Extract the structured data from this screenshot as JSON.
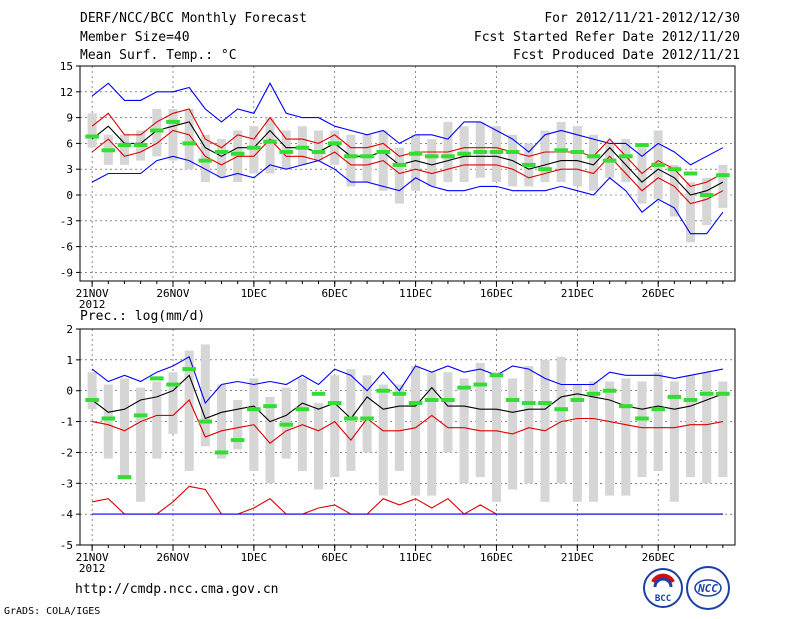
{
  "header": {
    "title": "DERF/NCC/BCC Monthly Forecast",
    "member_size": "Member Size=40",
    "forecast_period": "For 2012/11/21-2012/12/30",
    "start_date": "Fcst Started Refer Date 2012/11/20",
    "produced_date": "Fcst Produced Date 2012/11/21"
  },
  "footer": {
    "url": "http://cmdp.ncc.cma.gov.cn",
    "grads_credit": "GrADS: COLA/IGES",
    "logo_bcc": "BCC",
    "logo_ncc": "NCC"
  },
  "colors": {
    "box": "#d6d6d6",
    "ensemble_mean": "#000000",
    "outer_bounds": "#0000ff",
    "inner_bounds": "#e00000",
    "observed": "#33dd33",
    "frame": "#000000"
  },
  "chart_data": [
    {
      "type": "line",
      "name": "temperature",
      "ylabel": "Mean Surf. Temp.: °C",
      "ylim": [
        -10,
        15
      ],
      "yticks": [
        15,
        12,
        9,
        6,
        3,
        0,
        -3,
        -6,
        -9
      ],
      "x_tick_labels": [
        "21NOV",
        "26NOV",
        "1DEC",
        "6DEC",
        "11DEC",
        "16DEC",
        "21DEC",
        "26DEC"
      ],
      "x_tick_days": [
        1,
        6,
        11,
        16,
        21,
        26,
        31,
        36
      ],
      "x_year_label": "2012",
      "days": [
        1,
        2,
        3,
        4,
        5,
        6,
        7,
        8,
        9,
        10,
        11,
        12,
        13,
        14,
        15,
        16,
        17,
        18,
        19,
        20,
        21,
        22,
        23,
        24,
        25,
        26,
        27,
        28,
        29,
        30,
        31,
        32,
        33,
        34,
        35,
        36,
        37,
        38,
        39,
        40
      ],
      "box_top": [
        9.5,
        7.0,
        7.0,
        7.5,
        10.0,
        10.0,
        10.0,
        7.0,
        6.5,
        7.5,
        8.0,
        9.0,
        7.5,
        8.0,
        7.5,
        7.5,
        7.0,
        7.0,
        7.5,
        5.5,
        7.0,
        6.5,
        8.5,
        8.0,
        8.5,
        8.0,
        7.0,
        6.0,
        7.5,
        8.5,
        8.0,
        7.0,
        6.0,
        6.5,
        5.5,
        7.5,
        3.5,
        1.5,
        2.0,
        3.5
      ],
      "box_bottom": [
        5.5,
        3.5,
        3.5,
        4.0,
        4.5,
        4.0,
        3.0,
        1.5,
        2.0,
        1.5,
        2.5,
        2.5,
        3.0,
        3.5,
        4.0,
        3.5,
        1.0,
        1.5,
        0.5,
        -1.0,
        0.5,
        1.0,
        1.5,
        1.5,
        2.0,
        1.5,
        1.0,
        1.0,
        1.5,
        1.5,
        1.0,
        0.5,
        2.0,
        1.5,
        -1.0,
        -0.5,
        -2.5,
        -5.5,
        -3.5,
        -1.5
      ],
      "series": [
        {
          "name": "outer-high",
          "color": "blue",
          "values": [
            11.5,
            13.0,
            11.0,
            11.0,
            12.0,
            12.0,
            12.5,
            10.0,
            8.5,
            10.0,
            9.5,
            13.0,
            9.5,
            9.0,
            9.0,
            8.0,
            7.5,
            7.0,
            7.5,
            6.0,
            7.0,
            7.0,
            6.5,
            8.5,
            8.5,
            7.5,
            6.5,
            5.0,
            7.0,
            7.5,
            7.0,
            6.5,
            6.0,
            6.0,
            4.5,
            6.0,
            5.0,
            3.5,
            4.5,
            5.5
          ]
        },
        {
          "name": "inner-high",
          "color": "red",
          "values": [
            8.0,
            9.5,
            7.0,
            7.0,
            8.5,
            9.5,
            10.0,
            6.5,
            5.5,
            7.0,
            6.5,
            9.0,
            6.5,
            6.5,
            6.0,
            7.0,
            5.5,
            5.5,
            6.0,
            4.5,
            5.0,
            5.0,
            5.0,
            5.5,
            5.5,
            5.5,
            5.0,
            4.5,
            5.0,
            5.0,
            5.0,
            4.5,
            6.5,
            4.5,
            2.5,
            4.0,
            3.0,
            1.0,
            1.5,
            2.5
          ]
        },
        {
          "name": "ensemble-mean",
          "color": "black",
          "values": [
            6.5,
            8.0,
            6.0,
            6.0,
            7.5,
            8.0,
            8.5,
            5.5,
            4.5,
            5.5,
            5.5,
            7.5,
            5.5,
            5.5,
            5.0,
            6.0,
            4.5,
            4.5,
            5.0,
            3.5,
            4.0,
            3.5,
            4.0,
            4.5,
            4.5,
            4.5,
            4.0,
            3.0,
            3.5,
            4.0,
            4.0,
            3.5,
            5.5,
            3.5,
            1.5,
            3.0,
            2.0,
            0.0,
            0.5,
            1.5
          ]
        },
        {
          "name": "inner-low",
          "color": "red",
          "values": [
            5.0,
            6.5,
            4.5,
            5.0,
            6.0,
            7.5,
            7.0,
            4.5,
            3.5,
            4.5,
            4.5,
            6.5,
            4.5,
            4.5,
            4.0,
            5.0,
            3.5,
            3.5,
            4.0,
            2.5,
            3.0,
            2.5,
            3.0,
            3.5,
            3.5,
            3.5,
            3.0,
            2.0,
            2.5,
            3.0,
            3.0,
            2.5,
            4.5,
            2.5,
            0.5,
            2.0,
            1.0,
            -1.0,
            -0.5,
            0.5
          ]
        },
        {
          "name": "outer-low",
          "color": "blue",
          "values": [
            1.5,
            2.5,
            2.5,
            2.5,
            4.0,
            4.5,
            4.0,
            3.0,
            2.0,
            2.5,
            2.0,
            3.5,
            3.0,
            3.5,
            4.0,
            3.0,
            1.5,
            1.5,
            1.0,
            0.5,
            2.0,
            1.0,
            0.5,
            0.5,
            1.0,
            1.0,
            0.5,
            0.5,
            0.5,
            1.0,
            0.5,
            0.0,
            2.0,
            0.5,
            -2.0,
            -0.5,
            -1.5,
            -4.5,
            -4.5,
            -2.0
          ]
        },
        {
          "name": "observed",
          "color": "green",
          "values": [
            6.8,
            5.2,
            5.8,
            5.8,
            7.5,
            8.5,
            6.0,
            4.0,
            5.0,
            4.8,
            5.5,
            6.2,
            5.0,
            5.5,
            5.0,
            6.0,
            4.5,
            4.5,
            5.0,
            3.5,
            4.8,
            4.5,
            4.5,
            4.8,
            5.0,
            5.0,
            5.0,
            3.5,
            3.0,
            5.2,
            5.0,
            4.5,
            4.0,
            4.5,
            5.8,
            3.5,
            3.0,
            2.5,
            0.0,
            2.3
          ]
        }
      ]
    },
    {
      "type": "line",
      "name": "precipitation",
      "ylabel": "Prec.: log(mm/d)",
      "ylim": [
        -5,
        2
      ],
      "yticks": [
        2,
        1,
        0,
        -1,
        -2,
        -3,
        -4,
        -5
      ],
      "x_tick_labels": [
        "21NOV",
        "26NOV",
        "1DEC",
        "6DEC",
        "11DEC",
        "16DEC",
        "21DEC",
        "26DEC"
      ],
      "x_tick_days": [
        1,
        6,
        11,
        16,
        21,
        26,
        31,
        36
      ],
      "x_year_label": "2012",
      "days": [
        1,
        2,
        3,
        4,
        5,
        6,
        7,
        8,
        9,
        10,
        11,
        12,
        13,
        14,
        15,
        16,
        17,
        18,
        19,
        20,
        21,
        22,
        23,
        24,
        25,
        26,
        27,
        28,
        29,
        30,
        31,
        32,
        33,
        34,
        35,
        36,
        37,
        38,
        39,
        40
      ],
      "box_top": [
        0.6,
        0.2,
        0.4,
        0.1,
        0.3,
        0.6,
        1.3,
        1.5,
        0.2,
        -0.3,
        0.4,
        -0.2,
        0.1,
        0.4,
        -0.4,
        0.5,
        0.7,
        0.5,
        0.2,
        0.2,
        0.8,
        0.6,
        0.6,
        0.4,
        0.9,
        0.6,
        0.4,
        0.8,
        1.0,
        1.1,
        0.2,
        0.3,
        0.3,
        0.4,
        0.3,
        0.6,
        0.3,
        0.5,
        0.6,
        0.3
      ],
      "box_bottom": [
        -0.6,
        -2.2,
        -2.8,
        -3.6,
        -2.2,
        -1.4,
        -2.6,
        -1.8,
        -2.2,
        -1.9,
        -2.6,
        -3.0,
        -2.2,
        -2.6,
        -3.2,
        -2.8,
        -2.6,
        -2.0,
        -3.4,
        -2.6,
        -3.4,
        -3.4,
        -2.0,
        -3.0,
        -2.8,
        -3.6,
        -3.2,
        -3.0,
        -3.6,
        -3.0,
        -3.6,
        -3.6,
        -3.4,
        -3.4,
        -2.8,
        -2.6,
        -3.6,
        -2.8,
        -3.0,
        -2.8
      ],
      "series": [
        {
          "name": "outer-high",
          "color": "blue",
          "values": [
            0.7,
            0.3,
            0.5,
            0.3,
            0.6,
            0.8,
            1.1,
            -0.4,
            0.2,
            0.3,
            0.2,
            0.3,
            0.2,
            0.5,
            0.2,
            0.7,
            0.5,
            0.0,
            0.6,
            0.0,
            0.8,
            0.6,
            0.8,
            0.6,
            0.7,
            0.5,
            0.8,
            0.7,
            0.4,
            0.2,
            0.2,
            0.2,
            0.6,
            0.5,
            0.5,
            0.5,
            0.4,
            0.5,
            0.6,
            0.7
          ]
        },
        {
          "name": "ensemble-mean",
          "color": "black",
          "values": [
            -0.3,
            -0.7,
            -0.6,
            -0.3,
            -0.2,
            0.0,
            0.5,
            -0.9,
            -0.7,
            -0.6,
            -0.5,
            -1.0,
            -0.8,
            -0.4,
            -0.6,
            -0.4,
            -0.9,
            -0.2,
            -0.6,
            -0.5,
            -0.5,
            0.1,
            -0.5,
            -0.5,
            -0.6,
            -0.6,
            -0.7,
            -0.6,
            -0.6,
            -0.2,
            -0.1,
            -0.2,
            -0.3,
            -0.5,
            -0.6,
            -0.5,
            -0.6,
            -0.5,
            -0.3,
            -0.1
          ]
        },
        {
          "name": "inner-low",
          "color": "red",
          "values": [
            -1.0,
            -1.1,
            -1.3,
            -1.0,
            -0.8,
            -0.8,
            -0.3,
            -1.5,
            -1.3,
            -1.2,
            -1.1,
            -1.7,
            -1.3,
            -1.1,
            -1.3,
            -1.0,
            -1.6,
            -0.9,
            -1.3,
            -1.3,
            -1.2,
            -0.8,
            -1.2,
            -1.2,
            -1.3,
            -1.3,
            -1.4,
            -1.2,
            -1.3,
            -1.0,
            -0.9,
            -0.9,
            -1.0,
            -1.1,
            -1.2,
            -1.2,
            -1.2,
            -1.1,
            -1.1,
            -1.0
          ]
        },
        {
          "name": "outer-low",
          "color": "red",
          "values": [
            -3.6,
            -3.5,
            -4.0,
            -4.0,
            -4.0,
            -3.6,
            -3.1,
            -3.2,
            -4.0,
            -4.0,
            -3.8,
            -3.5,
            -4.0,
            -4.0,
            -3.8,
            -3.7,
            -4.0,
            -4.0,
            -3.5,
            -3.7,
            -3.5,
            -3.8,
            -3.5,
            -4.0,
            -3.7,
            -4.0,
            -4.0,
            -4.0,
            -4.0,
            -4.0,
            -4.0,
            -4.0,
            -4.0,
            -4.0,
            -4.0,
            -4.0,
            -4.0,
            -4.0,
            -4.0,
            -4.0
          ]
        },
        {
          "name": "floor",
          "color": "blue",
          "values": [
            -4.0,
            -4.0,
            -4.0,
            -4.0,
            -4.0,
            -4.0,
            -4.0,
            -4.0,
            -4.0,
            -4.0,
            -4.0,
            -4.0,
            -4.0,
            -4.0,
            -4.0,
            -4.0,
            -4.0,
            -4.0,
            -4.0,
            -4.0,
            -4.0,
            -4.0,
            -4.0,
            -4.0,
            -4.0,
            -4.0,
            -4.0,
            -4.0,
            -4.0,
            -4.0,
            -4.0,
            -4.0,
            -4.0,
            -4.0,
            -4.0,
            -4.0,
            -4.0,
            -4.0,
            -4.0,
            -4.0
          ]
        },
        {
          "name": "observed",
          "color": "green",
          "values": [
            -0.3,
            -0.9,
            -2.8,
            -0.8,
            0.4,
            0.2,
            0.7,
            -1.0,
            -2.0,
            -1.6,
            -0.6,
            -0.5,
            -1.1,
            -0.6,
            -0.1,
            -0.4,
            -0.9,
            -0.9,
            0.0,
            -0.1,
            -0.4,
            -0.3,
            -0.3,
            0.1,
            0.2,
            0.5,
            -0.3,
            -0.4,
            -0.4,
            -0.6,
            -0.3,
            -0.1,
            0.0,
            -0.5,
            -0.9,
            -0.6,
            -0.2,
            -0.3,
            -0.1,
            -0.1
          ]
        }
      ]
    }
  ]
}
